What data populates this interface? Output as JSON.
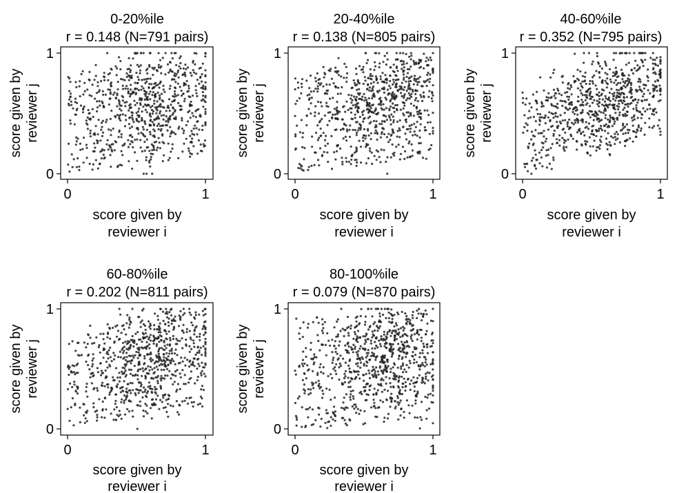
{
  "chart_data": [
    {
      "type": "scatter",
      "title_line1": "0-20%ile",
      "title_line2": "r = 0.148 (N=791 pairs)",
      "xlabel_line1": "score given by",
      "xlabel_line2": "reviewer i",
      "ylabel_line1": "score given by",
      "ylabel_line2": "reviewer j",
      "xlim": [
        0,
        1
      ],
      "ylim": [
        0,
        1
      ],
      "xticks": [
        "0",
        "1"
      ],
      "yticks": [
        "0",
        "1"
      ],
      "r": 0.148,
      "n": 791,
      "point_color": "#222222"
    },
    {
      "type": "scatter",
      "title_line1": "20-40%ile",
      "title_line2": "r = 0.138 (N=805 pairs)",
      "xlabel_line1": "score given by",
      "xlabel_line2": "reviewer i",
      "ylabel_line1": "score given by",
      "ylabel_line2": "reviewer j",
      "xlim": [
        0,
        1
      ],
      "ylim": [
        0,
        1
      ],
      "xticks": [
        "0",
        "1"
      ],
      "yticks": [
        "0",
        "1"
      ],
      "r": 0.138,
      "n": 805,
      "point_color": "#222222"
    },
    {
      "type": "scatter",
      "title_line1": "40-60%ile",
      "title_line2": "r = 0.352 (N=795 pairs)",
      "xlabel_line1": "score given by",
      "xlabel_line2": "reviewer i",
      "ylabel_line1": "score given by",
      "ylabel_line2": "reviewer j",
      "xlim": [
        0,
        1
      ],
      "ylim": [
        0,
        1
      ],
      "xticks": [
        "0",
        "1"
      ],
      "yticks": [
        "0",
        "1"
      ],
      "r": 0.352,
      "n": 795,
      "point_color": "#222222"
    },
    {
      "type": "scatter",
      "title_line1": "60-80%ile",
      "title_line2": "r = 0.202 (N=811 pairs)",
      "xlabel_line1": "score given by",
      "xlabel_line2": "reviewer i",
      "ylabel_line1": "score given by",
      "ylabel_line2": "reviewer j",
      "xlim": [
        0,
        1
      ],
      "ylim": [
        0,
        1
      ],
      "xticks": [
        "0",
        "1"
      ],
      "yticks": [
        "0",
        "1"
      ],
      "r": 0.202,
      "n": 811,
      "point_color": "#222222"
    },
    {
      "type": "scatter",
      "title_line1": "80-100%ile",
      "title_line2": "r = 0.079 (N=870 pairs)",
      "xlabel_line1": "score given by",
      "xlabel_line2": "reviewer i",
      "ylabel_line1": "score given by",
      "ylabel_line2": "reviewer j",
      "xlim": [
        0,
        1
      ],
      "ylim": [
        0,
        1
      ],
      "xticks": [
        "0",
        "1"
      ],
      "yticks": [
        "0",
        "1"
      ],
      "r": 0.079,
      "n": 870,
      "point_color": "#222222"
    }
  ]
}
